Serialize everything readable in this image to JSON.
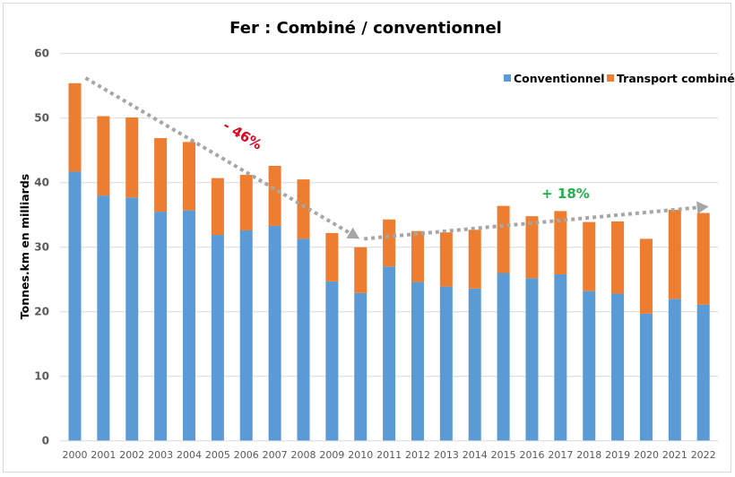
{
  "chart_data": {
    "type": "bar",
    "stacked": true,
    "title": "Fer : Combiné / conventionnel",
    "xlabel": "",
    "ylabel": "Tonnes.km en milliards",
    "ylim": [
      0,
      60
    ],
    "yticks": [
      0,
      10,
      20,
      30,
      40,
      50,
      60
    ],
    "grid": true,
    "legend_position": "top-right",
    "categories": [
      "2000",
      "2001",
      "2002",
      "2003",
      "2004",
      "2005",
      "2006",
      "2007",
      "2008",
      "2009",
      "2010",
      "2011",
      "2012",
      "2013",
      "2014",
      "2015",
      "2016",
      "2017",
      "2018",
      "2019",
      "2020",
      "2021",
      "2022"
    ],
    "series": [
      {
        "name": "Conventionnel",
        "color": "#5b9bd5",
        "values": [
          41.7,
          38.0,
          37.7,
          35.5,
          35.7,
          31.9,
          32.6,
          33.3,
          31.3,
          24.7,
          22.9,
          27.0,
          24.6,
          23.9,
          23.6,
          26.0,
          25.2,
          25.8,
          23.2,
          22.8,
          19.7,
          22.0,
          21.1
        ]
      },
      {
        "name": "Transport combiné",
        "color": "#ed7d31",
        "values": [
          13.7,
          12.3,
          12.4,
          11.4,
          10.6,
          8.8,
          8.6,
          9.3,
          9.2,
          7.5,
          7.1,
          7.3,
          7.9,
          8.4,
          9.1,
          10.4,
          9.6,
          9.8,
          10.7,
          11.2,
          11.6,
          13.8,
          14.2
        ]
      }
    ],
    "annotations": [
      {
        "text": "- 46%",
        "color": "#e3001b",
        "trend_from": "2000",
        "trend_to": "2010",
        "from_value": 56.2,
        "to_value": 31.3
      },
      {
        "text": "+ 18%",
        "color": "#22b14c",
        "trend_from": "2010",
        "trend_to": "2022",
        "from_value": 31.3,
        "to_value": 36.3
      }
    ],
    "trend_line_color": "#a6a6a6"
  }
}
